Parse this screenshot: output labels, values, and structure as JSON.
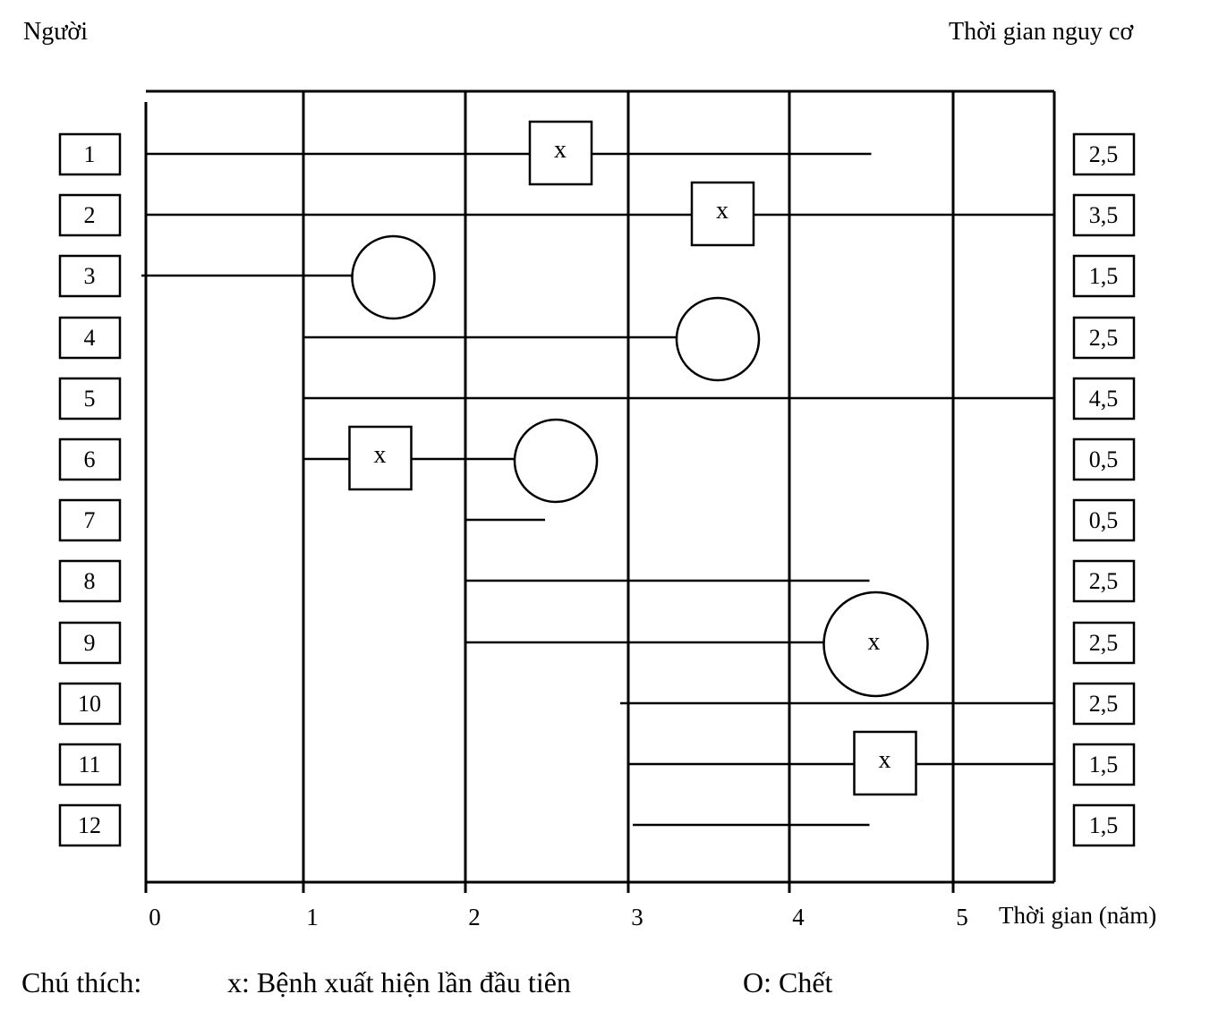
{
  "header": {
    "left_label": "Người",
    "right_label": "Thời gian nguy cơ"
  },
  "axis": {
    "x_label": "Thời gian (năm)",
    "x_ticks": [
      "0",
      "1",
      "2",
      "3",
      "4",
      "5"
    ],
    "x_range": [
      0,
      5.5
    ]
  },
  "legend": {
    "title": "Chú thích:",
    "onset": "x:  Bệnh xuất hiện lần đầu tiên",
    "death": "O:  Chết"
  },
  "people": [
    {
      "id": "1",
      "start": 0,
      "end": 4.5,
      "risk_time": "2,5",
      "event": "onset",
      "event_time": 2.5
    },
    {
      "id": "2",
      "start": 0,
      "end": 5.5,
      "risk_time": "3,5",
      "event": "onset",
      "event_time": 3.5
    },
    {
      "id": "3",
      "start": 0,
      "end": 1.5,
      "risk_time": "1,5",
      "event": "death",
      "event_time": 1.5
    },
    {
      "id": "4",
      "start": 1,
      "end": 3.5,
      "risk_time": "2,5",
      "event": "death",
      "event_time": 3.5
    },
    {
      "id": "5",
      "start": 1,
      "end": 5.5,
      "risk_time": "4,5",
      "event": "none"
    },
    {
      "id": "6",
      "start": 1,
      "end": 2.5,
      "risk_time": "0,5",
      "event": "onset-death",
      "event_time": 1.5,
      "death_time": 2.5
    },
    {
      "id": "7",
      "start": 2,
      "end": 2.5,
      "risk_time": "0,5",
      "event": "none"
    },
    {
      "id": "8",
      "start": 2,
      "end": 4.5,
      "risk_time": "2,5",
      "event": "none"
    },
    {
      "id": "9",
      "start": 2,
      "end": 4.5,
      "risk_time": "2,5",
      "event": "onset-death-same",
      "event_time": 4.5
    },
    {
      "id": "10",
      "start": 3,
      "end": 5.5,
      "risk_time": "2,5",
      "event": "none"
    },
    {
      "id": "11",
      "start": 3,
      "end": 5.5,
      "risk_time": "1,5",
      "event": "onset",
      "event_time": 4.5
    },
    {
      "id": "12",
      "start": 3,
      "end": 4.5,
      "risk_time": "1,5",
      "event": "none"
    }
  ],
  "event_marker_text": "x"
}
